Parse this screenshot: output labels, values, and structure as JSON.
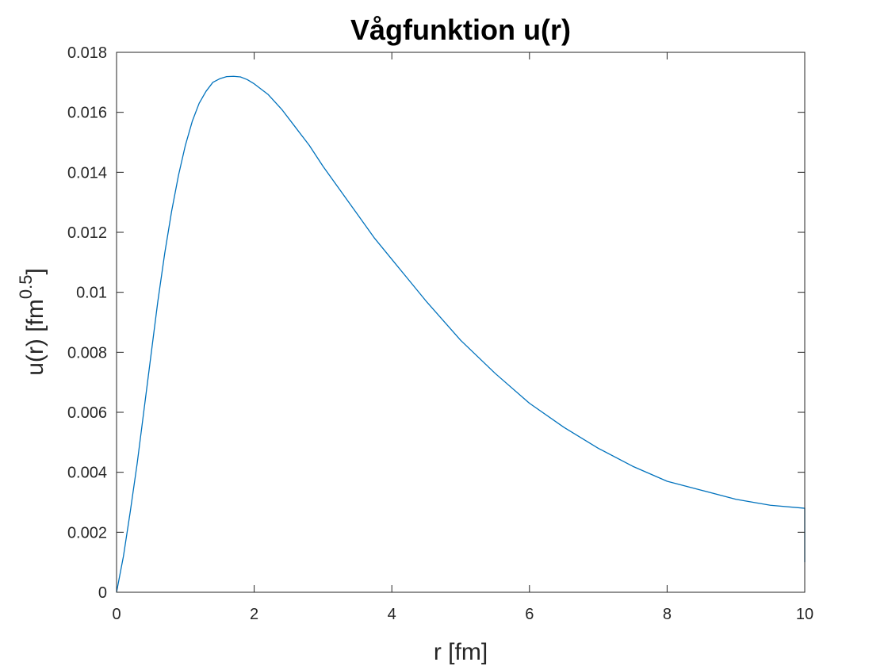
{
  "chart_data": {
    "type": "line",
    "title": "Vågfunktion u(r)",
    "xlabel": "r [fm]",
    "ylabel_base": "u(r) [fm",
    "ylabel_exponent": "0.5",
    "ylabel_close": "]",
    "xlim": [
      0,
      10
    ],
    "ylim": [
      0,
      0.018
    ],
    "xticks": [
      0,
      2,
      4,
      6,
      8,
      10
    ],
    "xtick_labels": [
      "0",
      "2",
      "4",
      "6",
      "8",
      "10"
    ],
    "yticks": [
      0,
      0.002,
      0.004,
      0.006,
      0.008,
      0.01,
      0.012,
      0.014,
      0.016,
      0.018
    ],
    "ytick_labels": [
      "0",
      "0.002",
      "0.004",
      "0.006",
      "0.008",
      "0.01",
      "0.012",
      "0.014",
      "0.016",
      "0.018"
    ],
    "grid": false,
    "box": true,
    "series": [
      {
        "color": "#0072BD",
        "x": [
          0,
          0.1,
          0.2,
          0.3,
          0.4,
          0.5,
          0.6,
          0.7,
          0.8,
          0.9,
          1.0,
          1.1,
          1.2,
          1.3,
          1.4,
          1.5,
          1.6,
          1.7,
          1.8,
          1.9,
          2.0,
          2.2,
          2.4,
          2.6,
          2.8,
          3.0,
          3.25,
          3.5,
          3.75,
          4.0,
          4.5,
          5.0,
          5.5,
          6.0,
          6.5,
          7.0,
          7.5,
          8.0,
          8.5,
          9.0,
          9.5,
          10.0,
          10.0
        ],
        "y": [
          0,
          0.0012,
          0.0027,
          0.0043,
          0.0061,
          0.0079,
          0.0097,
          0.0113,
          0.0127,
          0.0139,
          0.0149,
          0.0157,
          0.0163,
          0.0167,
          0.017,
          0.01712,
          0.01719,
          0.0172,
          0.01718,
          0.01709,
          0.01695,
          0.0166,
          0.0161,
          0.0155,
          0.0149,
          0.0142,
          0.0134,
          0.0126,
          0.0118,
          0.0111,
          0.0097,
          0.0084,
          0.0073,
          0.0063,
          0.0055,
          0.0048,
          0.0042,
          0.0037,
          0.0034,
          0.0031,
          0.0029,
          0.0028,
          0.001
        ]
      }
    ]
  }
}
